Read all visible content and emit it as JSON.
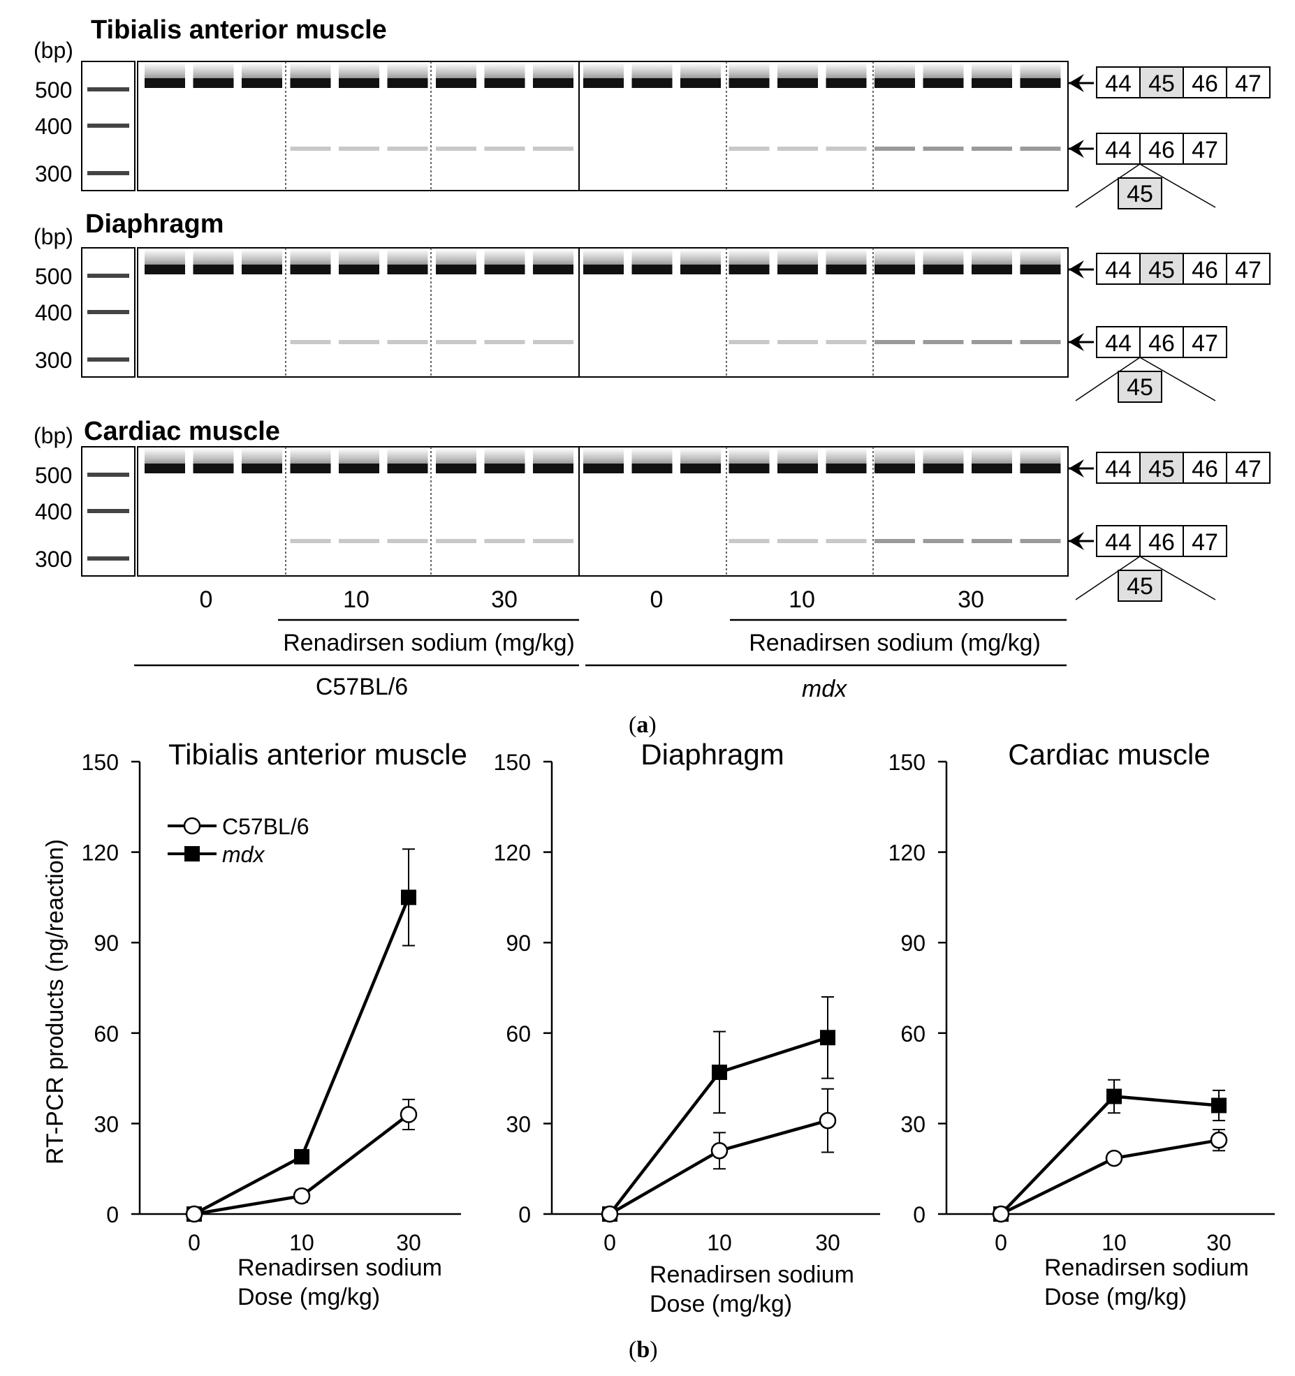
{
  "gel": {
    "bp_unit": "(bp)",
    "bp_ticks": [
      "500",
      "400",
      "300"
    ],
    "panels": [
      {
        "title": "Tibialis anterior muscle"
      },
      {
        "title": "Diaphragm"
      },
      {
        "title": "Cardiac muscle"
      }
    ],
    "exons_full": [
      "44",
      "45",
      "46",
      "47"
    ],
    "exons_skipped": [
      "44",
      "46",
      "47"
    ],
    "skipped_exon": "45",
    "dose_labels_c57": [
      "0",
      "10",
      "30"
    ],
    "dose_labels_mdx": [
      "0",
      "10",
      "30"
    ],
    "treatment_label_c57": "Renadirsen sodium (mg/kg)",
    "treatment_label_mdx": "Renadirsen sodium (mg/kg)",
    "strain_c57": "C57BL/6",
    "strain_mdx": "mdx",
    "panel_letter": "a"
  },
  "plots_panel_letter": "b",
  "colors": {
    "line": "#000000",
    "open_marker_fill": "#ffffff",
    "filled_marker": "#000000",
    "band": "#111111"
  },
  "chart_data": [
    {
      "type": "line",
      "title": "Tibialis anterior muscle",
      "ylabel": "RT-PCR products (ng/reaction)",
      "xlabel_line1": "Renadirsen sodium",
      "xlabel_line2": "Dose (mg/kg)",
      "categories": [
        "0",
        "10",
        "30"
      ],
      "ylim": [
        0,
        150
      ],
      "yticks": [
        "0",
        "30",
        "60",
        "90",
        "120",
        "150"
      ],
      "legend": [
        "C57BL/6",
        "mdx"
      ],
      "series": [
        {
          "name": "C57BL/6",
          "marker": "open-circle",
          "values": [
            0,
            6,
            33
          ],
          "errors": [
            0,
            2,
            5
          ]
        },
        {
          "name": "mdx",
          "marker": "filled-square",
          "values": [
            0,
            19,
            105
          ],
          "errors": [
            0,
            0,
            16
          ]
        }
      ]
    },
    {
      "type": "line",
      "title": "Diaphragm",
      "xlabel_line1": "Renadirsen sodium",
      "xlabel_line2": "Dose (mg/kg)",
      "categories": [
        "0",
        "10",
        "30"
      ],
      "ylim": [
        0,
        150
      ],
      "yticks": [
        "0",
        "30",
        "60",
        "90",
        "120",
        "150"
      ],
      "series": [
        {
          "name": "C57BL/6",
          "marker": "open-circle",
          "values": [
            0,
            21,
            31
          ],
          "errors": [
            0,
            6,
            10.5
          ]
        },
        {
          "name": "mdx",
          "marker": "filled-square",
          "values": [
            0,
            47,
            58.5
          ],
          "errors": [
            0,
            13.5,
            13.5
          ]
        }
      ]
    },
    {
      "type": "line",
      "title": "Cardiac muscle",
      "xlabel_line1": "Renadirsen sodium",
      "xlabel_line2": "Dose (mg/kg)",
      "categories": [
        "0",
        "10",
        "30"
      ],
      "ylim": [
        0,
        150
      ],
      "yticks": [
        "0",
        "30",
        "60",
        "90",
        "120",
        "150"
      ],
      "series": [
        {
          "name": "C57BL/6",
          "marker": "open-circle",
          "values": [
            0,
            18.5,
            24.5
          ],
          "errors": [
            0,
            0,
            3.5
          ]
        },
        {
          "name": "mdx",
          "marker": "filled-square",
          "values": [
            0,
            39,
            36
          ],
          "errors": [
            0,
            5.5,
            5
          ]
        }
      ]
    }
  ]
}
